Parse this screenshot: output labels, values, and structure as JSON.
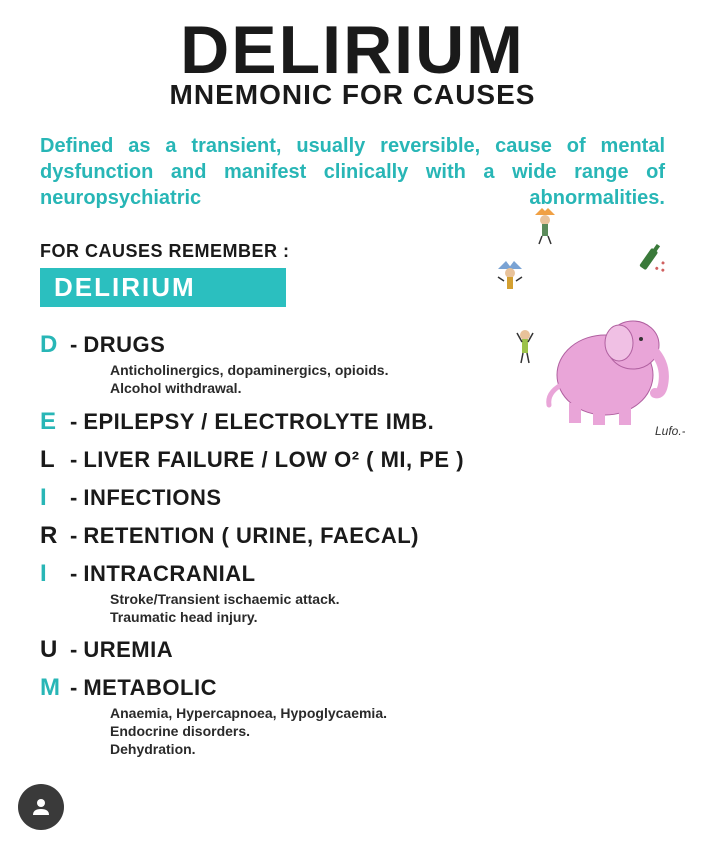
{
  "title": "DELIRIUM",
  "subtitle": "MNEMONIC FOR CAUSES",
  "definition": "Defined as a transient, usually reversible, cause of mental dysfunction and manifest clinically with a wide range of neuropsychiatric abnormalities.",
  "remember_label": "FOR CAUSES REMEMBER :",
  "mnemonic_word": "DELIRIUM",
  "colors": {
    "accent": "#28b6b6",
    "badge_bg": "#2bbfbf",
    "text_dark": "#1a1a1a",
    "elephant": "#e9a5d8",
    "person1": "#f0a044",
    "person2": "#7aa3d4",
    "person3": "#9cc24a",
    "bottle": "#3a7a3a"
  },
  "items": [
    {
      "letter": "D",
      "letter_color": "#28b6b6",
      "term": "DRUGS",
      "details": "Anticholinergics, dopaminergics, opioids.\nAlcohol withdrawal."
    },
    {
      "letter": "E",
      "letter_color": "#28b6b6",
      "term": "EPILEPSY / ELECTROLYTE IMB.",
      "details": ""
    },
    {
      "letter": "L",
      "letter_color": "#1a1a1a",
      "term": "LIVER FAILURE / LOW O² ( MI, PE )",
      "details": ""
    },
    {
      "letter": "I",
      "letter_color": "#28b6b6",
      "term": "INFECTIONS",
      "details": ""
    },
    {
      "letter": "R",
      "letter_color": "#1a1a1a",
      "term": "RETENTION ( URINE, FAECAL)",
      "details": ""
    },
    {
      "letter": "I",
      "letter_color": "#28b6b6",
      "term": "INTRACRANIAL",
      "details": "Stroke/Transient ischaemic attack.\nTraumatic head injury."
    },
    {
      "letter": "U",
      "letter_color": "#1a1a1a",
      "term": "UREMIA",
      "details": ""
    },
    {
      "letter": "M",
      "letter_color": "#28b6b6",
      "term": "METABOLIC",
      "details": "Anaemia, Hypercapnoea, Hypoglycaemia.\nEndocrine disorders.\nDehydration."
    }
  ],
  "illustration_signature": "Lufo.-"
}
